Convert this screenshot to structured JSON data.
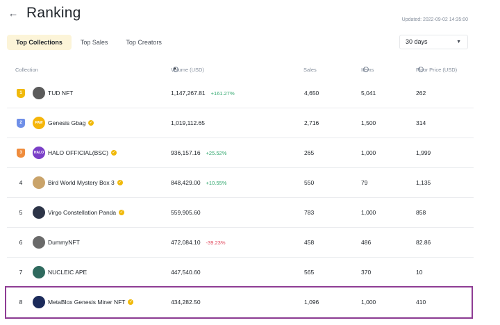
{
  "header": {
    "back_icon": "arrow-left-icon",
    "title": "Ranking",
    "updated": "Updated: 2022-09-02 14:35:00"
  },
  "tabs": [
    {
      "label": "Top Collections",
      "active": true
    },
    {
      "label": "Top Sales",
      "active": false
    },
    {
      "label": "Top Creators",
      "active": false
    }
  ],
  "period_select": {
    "value": "30 days",
    "icon": "caret-down-icon"
  },
  "columns": {
    "collection": "Collection",
    "volume": "Volume (USD)",
    "sales": "Sales",
    "items": "Items",
    "floor": "Floor Price (USD)"
  },
  "rows": [
    {
      "rank": "1",
      "badge": "gold",
      "name": "TUD NFT",
      "verified": false,
      "avatar_color": "#5b5b5b",
      "avatar_text": "",
      "volume": "1,147,267.81",
      "change": "+161.27%",
      "change_dir": "up",
      "sales": "4,650",
      "items": "5,041",
      "floor": "262"
    },
    {
      "rank": "2",
      "badge": "blue",
      "name": "Genesis Gbag",
      "verified": true,
      "avatar_color": "#f5b50a",
      "avatar_text": "PAW",
      "volume": "1,019,112.65",
      "change": "",
      "change_dir": "",
      "sales": "2,716",
      "items": "1,500",
      "floor": "314"
    },
    {
      "rank": "3",
      "badge": "orange",
      "name": "HALO OFFICIAL(BSC)",
      "verified": true,
      "avatar_color": "#7a3fc7",
      "avatar_text": "HALO",
      "volume": "936,157.16",
      "change": "+25.52%",
      "change_dir": "up",
      "sales": "265",
      "items": "1,000",
      "floor": "1,999"
    },
    {
      "rank": "4",
      "badge": "",
      "name": "Bird World Mystery Box 3",
      "verified": true,
      "avatar_color": "#c9a36a",
      "avatar_text": "",
      "volume": "848,429.00",
      "change": "+10.55%",
      "change_dir": "up",
      "sales": "550",
      "items": "79",
      "floor": "1,135"
    },
    {
      "rank": "5",
      "badge": "",
      "name": "Virgo Constellation Panda",
      "verified": true,
      "avatar_color": "#2c3447",
      "avatar_text": "",
      "volume": "559,905.60",
      "change": "",
      "change_dir": "",
      "sales": "783",
      "items": "1,000",
      "floor": "858"
    },
    {
      "rank": "6",
      "badge": "",
      "name": "DummyNFT",
      "verified": false,
      "avatar_color": "#6a6a6a",
      "avatar_text": "",
      "volume": "472,084.10",
      "change": "-39.23%",
      "change_dir": "down",
      "sales": "458",
      "items": "486",
      "floor": "82.86"
    },
    {
      "rank": "7",
      "badge": "",
      "name": "NUCLEIC APE",
      "verified": false,
      "avatar_color": "#2f6a5e",
      "avatar_text": "",
      "volume": "447,540.60",
      "change": "",
      "change_dir": "",
      "sales": "565",
      "items": "370",
      "floor": "10"
    },
    {
      "rank": "8",
      "badge": "",
      "name": "MetaBlox Genesis Miner NFT",
      "verified": true,
      "avatar_color": "#1b2a5a",
      "avatar_text": "",
      "volume": "434,282.50",
      "change": "",
      "change_dir": "",
      "sales": "1,096",
      "items": "1,000",
      "floor": "410"
    }
  ],
  "colors": {
    "accent": "#f0b90b",
    "up": "#2ea66c",
    "down": "#e0475b",
    "highlight": "#8e3c94"
  }
}
